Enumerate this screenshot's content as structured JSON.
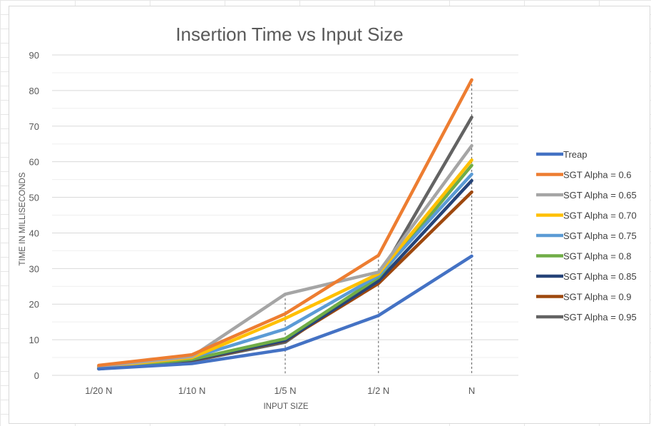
{
  "chart_data": {
    "type": "line",
    "title": "Insertion Time vs Input Size",
    "xlabel": "INPUT SIZE",
    "ylabel": "TIME IN MILLISECONDS",
    "categories": [
      "1/20 N",
      "1/10 N",
      "1/5 N",
      "1/2 N",
      "N"
    ],
    "ylim": [
      0,
      90
    ],
    "yticks": [
      0,
      10,
      20,
      30,
      40,
      50,
      60,
      70,
      80,
      90
    ],
    "grid": true,
    "legend_position": "right",
    "series": [
      {
        "name": "Treap",
        "color": "#4472C4",
        "values": [
          1.8,
          3.3,
          7.3,
          16.8,
          33.5
        ]
      },
      {
        "name": "SGT Alpha = 0.6",
        "color": "#ED7D31",
        "values": [
          2.8,
          5.8,
          17.3,
          33.7,
          83.0
        ]
      },
      {
        "name": "SGT Alpha = 0.65",
        "color": "#A5A5A5",
        "values": [
          2.5,
          5.3,
          22.8,
          29.0,
          64.5
        ]
      },
      {
        "name": "SGT Alpha = 0.70",
        "color": "#FFC000",
        "values": [
          2.3,
          5.0,
          16.0,
          28.5,
          60.5
        ]
      },
      {
        "name": "SGT Alpha = 0.75",
        "color": "#5B9BD5",
        "values": [
          2.2,
          5.0,
          13.0,
          28.0,
          56.5
        ]
      },
      {
        "name": "SGT Alpha = 0.8",
        "color": "#70AD47",
        "values": [
          2.0,
          4.5,
          10.3,
          27.5,
          59.0
        ]
      },
      {
        "name": "SGT Alpha = 0.85",
        "color": "#264478",
        "values": [
          2.4,
          4.3,
          9.8,
          26.5,
          54.7
        ]
      },
      {
        "name": "SGT Alpha = 0.9",
        "color": "#9E480E",
        "values": [
          2.0,
          4.2,
          9.7,
          25.8,
          51.5
        ]
      },
      {
        "name": "SGT Alpha = 0.95",
        "color": "#636363",
        "values": [
          1.8,
          4.0,
          9.3,
          27.5,
          72.5
        ]
      }
    ]
  }
}
